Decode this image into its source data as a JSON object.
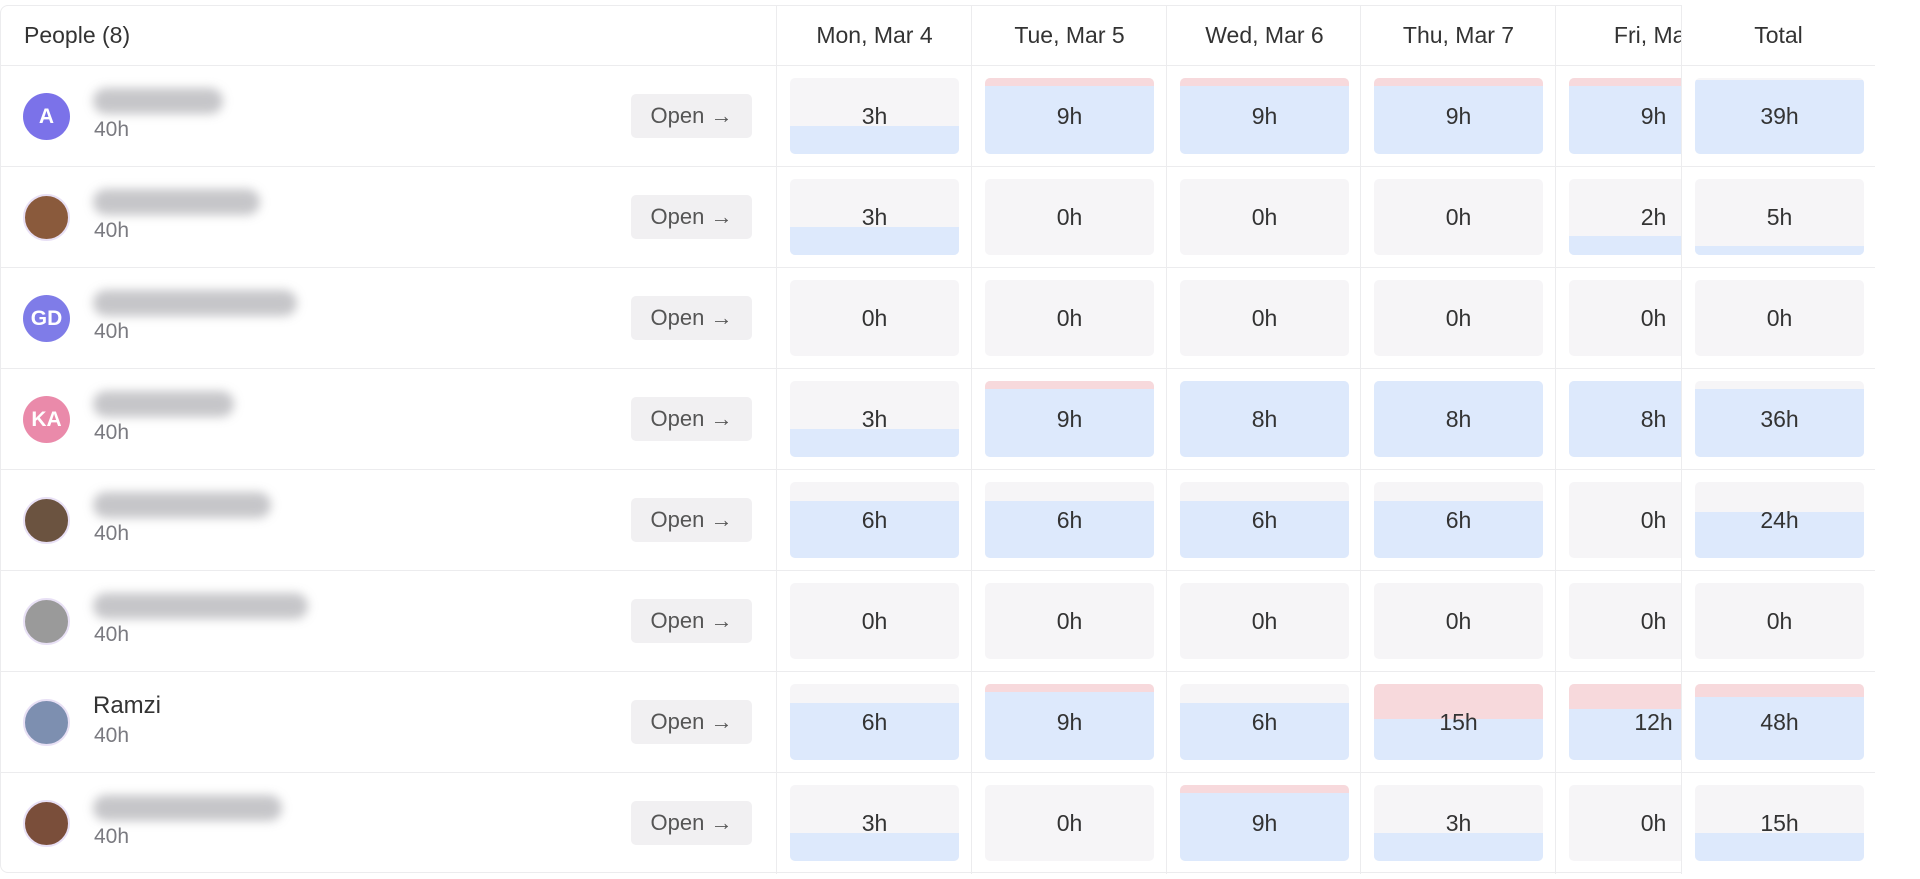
{
  "header": {
    "people": "People (8)",
    "days": [
      "Mon, Mar 4",
      "Tue, Mar 5",
      "Wed, Mar 6",
      "Thu, Mar 7",
      "Fri, Mar"
    ],
    "total": "Total"
  },
  "rows": [
    {
      "initials": "A",
      "avatar_color": "#7b72e9",
      "capacity": {
        "value": 40,
        "label": "40h"
      },
      "button": "Open →",
      "hours": [
        {
          "value": 3,
          "label": "3h"
        },
        {
          "value": 9,
          "label": "9h"
        },
        {
          "value": 9,
          "label": "9h"
        },
        {
          "value": 9,
          "label": "9h"
        },
        {
          "value": 9,
          "label": "9h"
        }
      ],
      "total": {
        "value": 39,
        "label": "39h"
      }
    },
    {
      "avatar_color": "#8a5a3c",
      "capacity": {
        "value": 40,
        "label": "40h"
      },
      "button": "Open →",
      "hours": [
        {
          "value": 3,
          "label": "3h"
        },
        {
          "value": 0,
          "label": "0h"
        },
        {
          "value": 0,
          "label": "0h"
        },
        {
          "value": 0,
          "label": "0h"
        },
        {
          "value": 2,
          "label": "2h"
        }
      ],
      "total": {
        "value": 5,
        "label": "5h"
      }
    },
    {
      "initials": "GD",
      "avatar_color": "#7f7ce8",
      "capacity": {
        "value": 40,
        "label": "40h"
      },
      "button": "Open →",
      "hours": [
        {
          "value": 0,
          "label": "0h"
        },
        {
          "value": 0,
          "label": "0h"
        },
        {
          "value": 0,
          "label": "0h"
        },
        {
          "value": 0,
          "label": "0h"
        },
        {
          "value": 0,
          "label": "0h"
        }
      ],
      "total": {
        "value": 0,
        "label": "0h"
      }
    },
    {
      "initials": "KA",
      "avatar_color": "#ea8aaa",
      "capacity": {
        "value": 40,
        "label": "40h"
      },
      "button": "Open →",
      "hours": [
        {
          "value": 3,
          "label": "3h"
        },
        {
          "value": 9,
          "label": "9h"
        },
        {
          "value": 8,
          "label": "8h"
        },
        {
          "value": 8,
          "label": "8h"
        },
        {
          "value": 8,
          "label": "8h"
        }
      ],
      "total": {
        "value": 36,
        "label": "36h"
      }
    },
    {
      "avatar_color": "#6b5340",
      "capacity": {
        "value": 40,
        "label": "40h"
      },
      "button": "Open →",
      "hours": [
        {
          "value": 6,
          "label": "6h"
        },
        {
          "value": 6,
          "label": "6h"
        },
        {
          "value": 6,
          "label": "6h"
        },
        {
          "value": 6,
          "label": "6h"
        },
        {
          "value": 0,
          "label": "0h"
        }
      ],
      "total": {
        "value": 24,
        "label": "24h"
      }
    },
    {
      "avatar_color": "#9a9a9a",
      "capacity": {
        "value": 40,
        "label": "40h"
      },
      "button": "Open →",
      "hours": [
        {
          "value": 0,
          "label": "0h"
        },
        {
          "value": 0,
          "label": "0h"
        },
        {
          "value": 0,
          "label": "0h"
        },
        {
          "value": 0,
          "label": "0h"
        },
        {
          "value": 0,
          "label": "0h"
        }
      ],
      "total": {
        "value": 0,
        "label": "0h"
      }
    },
    {
      "name": "Ramzi",
      "avatar_color": "#7d8fb0",
      "capacity": {
        "value": 40,
        "label": "40h"
      },
      "button": "Open →",
      "hours": [
        {
          "value": 6,
          "label": "6h"
        },
        {
          "value": 9,
          "label": "9h"
        },
        {
          "value": 6,
          "label": "6h"
        },
        {
          "value": 15,
          "label": "15h"
        },
        {
          "value": 12,
          "label": "12h"
        }
      ],
      "total": {
        "value": 48,
        "label": "48h"
      }
    },
    {
      "avatar_color": "#7a4e3a",
      "capacity": {
        "value": 40,
        "label": "40h"
      },
      "button": "Open →",
      "hours": [
        {
          "value": 3,
          "label": "3h"
        },
        {
          "value": 0,
          "label": "0h"
        },
        {
          "value": 9,
          "label": "9h"
        },
        {
          "value": 3,
          "label": "3h"
        },
        {
          "value": 0,
          "label": "0h"
        }
      ],
      "total": {
        "value": 15,
        "label": "15h"
      }
    }
  ]
}
